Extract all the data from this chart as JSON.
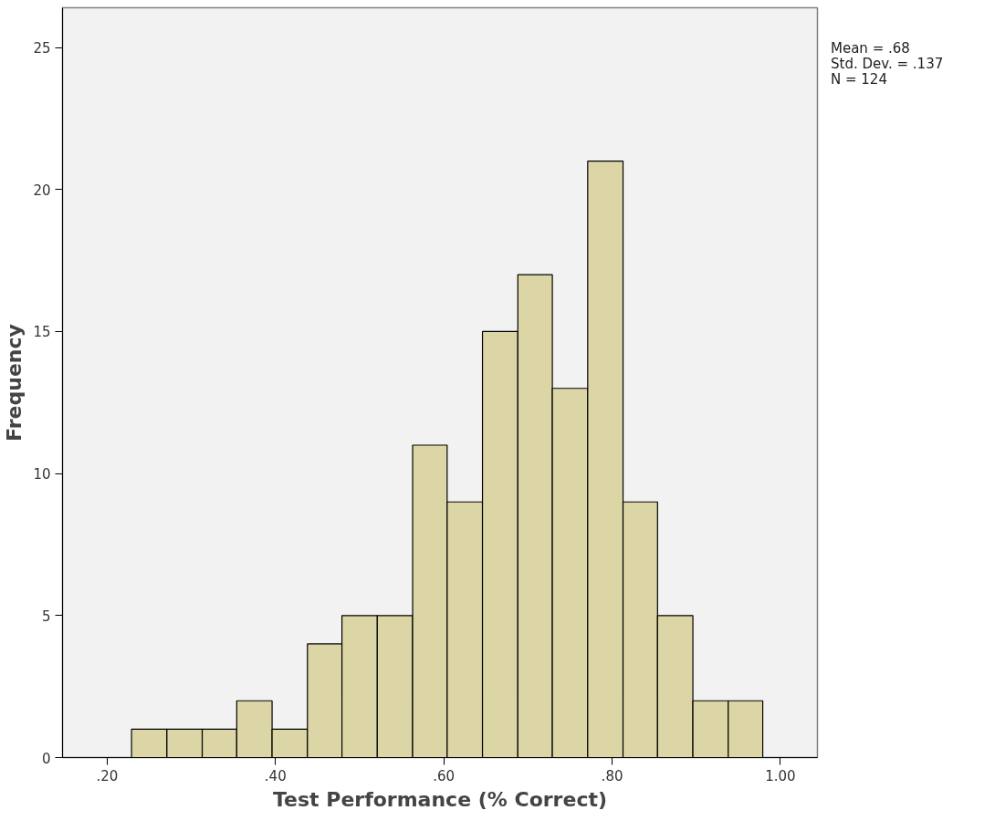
{
  "chart_data": {
    "type": "histogram",
    "xlabel": "Test Performance (% Correct)",
    "ylabel": "Frequency",
    "bins": [
      0.229,
      0.271,
      0.313,
      0.354,
      0.396,
      0.438,
      0.479,
      0.521,
      0.563,
      0.604,
      0.646,
      0.688,
      0.729,
      0.771,
      0.813,
      0.854,
      0.896,
      0.938,
      0.979
    ],
    "values": [
      1,
      1,
      1,
      2,
      1,
      4,
      5,
      5,
      11,
      9,
      15,
      17,
      13,
      21,
      9,
      5,
      2,
      2
    ],
    "color": "#dcd6a6",
    "xlim": [
      0.147,
      1.044
    ],
    "xticks": [
      {
        "value": 0.2,
        "label": ".20"
      },
      {
        "value": 0.4,
        "label": ".40"
      },
      {
        "value": 0.6,
        "label": ".60"
      },
      {
        "value": 0.8,
        "label": ".80"
      },
      {
        "value": 1.0,
        "label": "1.00"
      }
    ],
    "ylim": [
      0,
      26.4
    ],
    "yticks": [
      0,
      5,
      10,
      15,
      20,
      25
    ],
    "grid": false,
    "annotations": [
      "Mean = .68",
      "Std. Dev. = .137",
      "N = 124"
    ]
  }
}
